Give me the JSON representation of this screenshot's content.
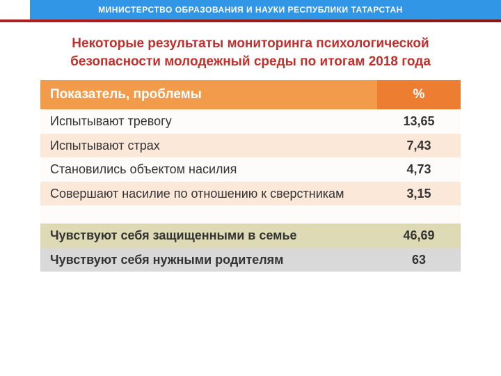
{
  "header": {
    "ministry": "МИНИСТЕРСТВО ОБРАЗОВАНИЯ И НАУКИ РЕСПУБЛИКИ ТАТАРСТАН",
    "bar_color": "#3296e6",
    "strip_color": "#a01a20"
  },
  "title": {
    "text": "Некоторые результаты мониторинга психологической безопасности молодежный среды по итогам 2018 года",
    "color": "#c0302c",
    "fontsize": 19
  },
  "table": {
    "type": "table",
    "header_bg_label": "#f29b4b",
    "header_bg_pct": "#ed7d31",
    "columns": [
      {
        "key": "label",
        "title": "Показатель, проблемы"
      },
      {
        "key": "pct",
        "title": "%"
      }
    ],
    "row_colors": {
      "band_a": "#fefcfb",
      "band_b": "#fbe8d9",
      "khaki": "#dedab5",
      "grey": "#d9d9d9",
      "spacer": "#fefcfb"
    },
    "rows": [
      {
        "label": "Испытывают тревогу",
        "pct": "13,65",
        "bg_label": "#fefcfb",
        "bg_pct": "#fefcfb",
        "bold": false
      },
      {
        "label": "Испытывают страх",
        "pct": "7,43",
        "bg_label": "#fbe8d9",
        "bg_pct": "#fbe8d9",
        "bold": false
      },
      {
        "label": "Становились объектом насилия",
        "pct": "4,73",
        "bg_label": "#fefcfb",
        "bg_pct": "#fefcfb",
        "bold": false
      },
      {
        "label": "Совершают насилие по отношению к сверстникам",
        "pct": "3,15",
        "bg_label": "#fbe8d9",
        "bg_pct": "#fbe8d9",
        "bold": false
      },
      {
        "spacer": true,
        "bg": "#fefcfb"
      },
      {
        "label": "Чувствуют себя защищенными в семье",
        "pct": "46,69",
        "bg_label": "#dedab5",
        "bg_pct": "#dedab5",
        "bold": true
      },
      {
        "label": "Чувствуют себя нужными родителям",
        "pct": "63",
        "bg_label": "#d9d9d9",
        "bg_pct": "#d9d9d9",
        "bold": true
      }
    ]
  }
}
